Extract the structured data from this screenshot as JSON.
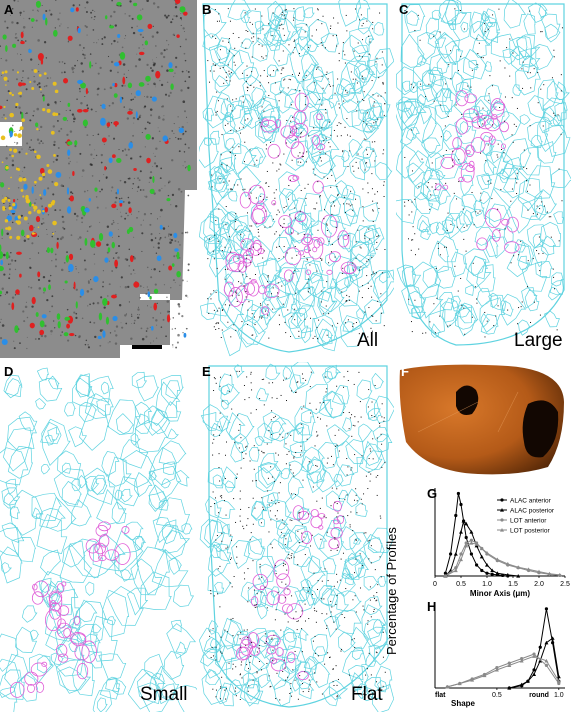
{
  "figure": {
    "panels": {
      "A": {
        "letter": "A"
      },
      "B": {
        "letter": "B",
        "label": "All"
      },
      "C": {
        "letter": "C",
        "label": "Large"
      },
      "D": {
        "letter": "D",
        "label": "Small"
      },
      "E": {
        "letter": "E",
        "label": "Flat"
      },
      "F": {
        "letter": "F"
      },
      "G": {
        "letter": "G"
      },
      "H": {
        "letter": "H"
      }
    },
    "shared_ylabel": "Percentage of Profiles"
  },
  "colors": {
    "contour_cyan": "#5fd3e0",
    "contour_magenta": "#e060d8",
    "tissue_gray": "#8c8c8c",
    "dot_red": "#e02020",
    "dot_green": "#30c030",
    "dot_blue": "#2a8ee8",
    "dot_yellow": "#e8c020",
    "fluor_orange": "#c8651c"
  },
  "chart_data": [
    {
      "panel": "G",
      "type": "line",
      "xlabel": "Minor Axis (μm)",
      "ylabel": "Percentage of Profiles",
      "xlim": [
        0,
        2.5
      ],
      "ylim": [
        0,
        16
      ],
      "xticks": [
        "0",
        "0.5",
        "1.0",
        "1.5",
        "2.0",
        "2.5"
      ],
      "legend_position": "top-right",
      "series": [
        {
          "name": "ALAC anterior",
          "color": "#000000",
          "marker": "circle",
          "x": [
            0.2,
            0.3,
            0.4,
            0.45,
            0.5,
            0.55,
            0.6,
            0.7,
            0.8,
            0.9,
            1.0,
            1.1,
            1.2,
            1.3,
            1.4
          ],
          "y": [
            0.5,
            4,
            11,
            15,
            13,
            10,
            7,
            4,
            2,
            1,
            0.5,
            0.3,
            0.2,
            0.1,
            0
          ]
        },
        {
          "name": "ALAC posterior",
          "color": "#000000",
          "marker": "triangle",
          "x": [
            0.2,
            0.3,
            0.4,
            0.5,
            0.55,
            0.6,
            0.7,
            0.8,
            0.9,
            1.0,
            1.1,
            1.2,
            1.4,
            1.6
          ],
          "y": [
            0,
            1,
            4,
            8,
            10,
            9.5,
            8,
            5.5,
            3.5,
            2,
            1,
            0.5,
            0.2,
            0
          ]
        },
        {
          "name": "LOT anterior",
          "color": "#8a8a8a",
          "marker": "circle",
          "x": [
            0.2,
            0.4,
            0.5,
            0.6,
            0.7,
            0.8,
            0.9,
            1.0,
            1.2,
            1.4,
            1.6,
            1.8,
            2.0,
            2.2,
            2.4
          ],
          "y": [
            0,
            1.5,
            4,
            6,
            6.5,
            6,
            5,
            4,
            2.8,
            2,
            1.5,
            1,
            0.6,
            0.3,
            0.1
          ]
        },
        {
          "name": "LOT posterior",
          "color": "#8a8a8a",
          "marker": "triangle",
          "x": [
            0.2,
            0.4,
            0.5,
            0.6,
            0.7,
            0.8,
            0.9,
            1.0,
            1.2,
            1.4,
            1.6,
            1.8,
            2.0,
            2.2,
            2.4
          ],
          "y": [
            0,
            1,
            3,
            5.5,
            6,
            5.8,
            5,
            4.2,
            3,
            2.2,
            1.6,
            1.2,
            0.8,
            0.4,
            0.2
          ]
        }
      ]
    },
    {
      "panel": "H",
      "type": "line",
      "xlabel": "Shape",
      "ylabel": "Percentage of Profiles",
      "xlim": [
        0,
        1.05
      ],
      "ylim": [
        0,
        38
      ],
      "xticks": [
        "0.5",
        "1.0"
      ],
      "xticklabels_extra": [
        "flat",
        "round"
      ],
      "series": [
        {
          "name": "ALAC anterior",
          "color": "#000000",
          "marker": "circle",
          "x": [
            0.6,
            0.7,
            0.75,
            0.8,
            0.85,
            0.9,
            0.95,
            1.0
          ],
          "y": [
            0,
            1,
            3,
            8,
            18,
            35,
            20,
            3
          ]
        },
        {
          "name": "ALAC posterior",
          "color": "#000000",
          "marker": "triangle",
          "x": [
            0.6,
            0.7,
            0.75,
            0.8,
            0.85,
            0.9,
            0.95,
            1.0
          ],
          "y": [
            0,
            1.5,
            3,
            6,
            12,
            20,
            22,
            5
          ]
        },
        {
          "name": "LOT anterior",
          "color": "#8a8a8a",
          "marker": "circle",
          "x": [
            0.1,
            0.2,
            0.3,
            0.4,
            0.5,
            0.6,
            0.7,
            0.8,
            0.9,
            1.0
          ],
          "y": [
            0.5,
            2,
            4,
            6,
            9,
            11,
            13,
            15,
            10,
            2
          ]
        },
        {
          "name": "LOT posterior",
          "color": "#8a8a8a",
          "marker": "triangle",
          "x": [
            0.1,
            0.2,
            0.3,
            0.4,
            0.5,
            0.6,
            0.7,
            0.8,
            0.9,
            1.0
          ],
          "y": [
            0.5,
            2,
            3.5,
            5.5,
            8,
            10,
            12,
            14,
            12,
            3
          ]
        }
      ]
    }
  ]
}
